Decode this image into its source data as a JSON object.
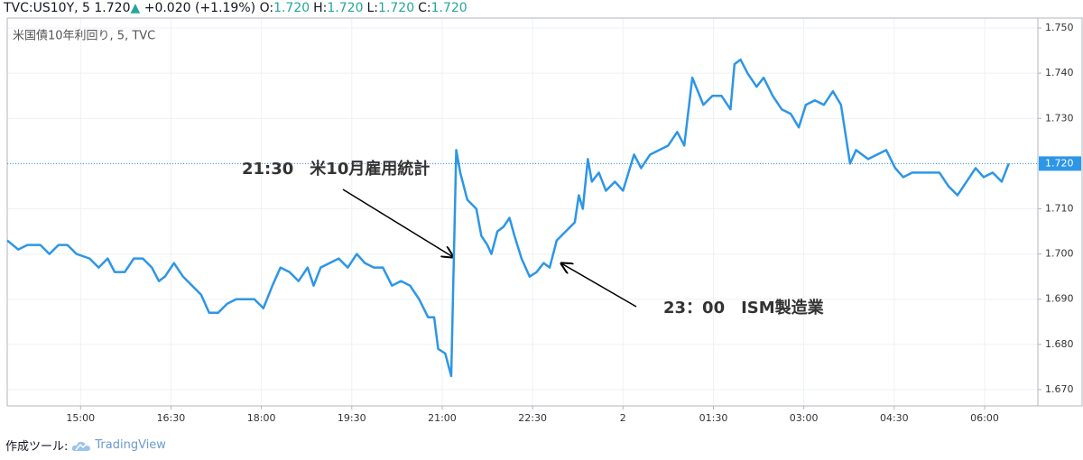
{
  "header": {
    "symbol": "TVC:US10Y, 5",
    "price": "1.720",
    "change_arrow": "▲",
    "change": "+0.020 (+1.19%)",
    "ohlc": [
      {
        "key": "O:",
        "value": "1.720"
      },
      {
        "key": "H:",
        "value": "1.720"
      },
      {
        "key": "L:",
        "value": "1.720"
      },
      {
        "key": "C:",
        "value": "1.720"
      }
    ]
  },
  "chart_data": {
    "type": "line",
    "title": "米国債10年利回り, 5, TVC",
    "x": [
      827,
      838,
      847,
      860,
      869,
      878,
      887,
      896,
      909,
      918,
      927,
      934,
      944,
      953,
      962,
      971,
      978,
      984,
      993,
      1002,
      1011,
      1020,
      1028,
      1037,
      1046,
      1055,
      1064,
      1073,
      1082,
      1091,
      1099,
      1108,
      1117,
      1126,
      1132,
      1139,
      1148,
      1157,
      1166,
      1175,
      1183,
      1192,
      1201,
      1210,
      1219,
      1228,
      1237,
      1246,
      1252,
      1256,
      1263,
      1269,
      1274,
      1278,
      1285,
      1294,
      1299,
      1305,
      1309,
      1315,
      1321,
      1327,
      1332,
      1339,
      1347,
      1354,
      1361,
      1367,
      1374,
      1383,
      1392,
      1396,
      1400,
      1405,
      1409,
      1416,
      1423,
      1432,
      1440,
      1451,
      1458,
      1467,
      1476,
      1485,
      1494,
      1501,
      1509,
      1520,
      1529,
      1538,
      1547,
      1551,
      1557,
      1564,
      1573,
      1580,
      1589,
      1598,
      1607,
      1615,
      1622,
      1631,
      1640,
      1649,
      1657,
      1666,
      1672,
      1684,
      1693,
      1702,
      1711,
      1719,
      1728,
      1737,
      1746,
      1755,
      1764,
      1773,
      1782,
      1791,
      1799,
      1808,
      1817,
      1824
    ],
    "series": [
      {
        "color": "#2d96e6",
        "values": [
          1.703,
          1.701,
          1.702,
          1.702,
          1.7,
          1.702,
          1.702,
          1.7,
          1.699,
          1.697,
          1.699,
          1.696,
          1.696,
          1.699,
          1.699,
          1.697,
          1.694,
          1.695,
          1.698,
          1.695,
          1.693,
          1.691,
          1.687,
          1.687,
          1.689,
          1.69,
          1.69,
          1.69,
          1.688,
          1.693,
          1.697,
          1.696,
          1.694,
          1.697,
          1.693,
          1.697,
          1.698,
          1.699,
          1.697,
          1.7,
          1.698,
          1.697,
          1.697,
          1.693,
          1.694,
          1.693,
          1.69,
          1.686,
          1.686,
          1.679,
          1.678,
          1.673,
          1.723,
          1.718,
          1.712,
          1.71,
          1.704,
          1.702,
          1.7,
          1.705,
          1.706,
          1.708,
          1.704,
          1.699,
          1.695,
          1.696,
          1.698,
          1.697,
          1.703,
          1.705,
          1.707,
          1.713,
          1.71,
          1.721,
          1.716,
          1.718,
          1.714,
          1.716,
          1.714,
          1.722,
          1.719,
          1.722,
          1.723,
          1.724,
          1.727,
          1.724,
          1.739,
          1.733,
          1.735,
          1.735,
          1.732,
          1.742,
          1.743,
          1.74,
          1.737,
          1.739,
          1.735,
          1.732,
          1.731,
          1.728,
          1.733,
          1.734,
          1.733,
          1.736,
          1.733,
          1.72,
          1.723,
          1.721,
          1.722,
          1.723,
          1.719,
          1.717,
          1.718,
          1.718,
          1.718,
          1.718,
          1.715,
          1.713,
          1.716,
          1.719,
          1.717,
          1.718,
          1.716,
          1.72
        ]
      }
    ],
    "last_price": {
      "value": 1.72,
      "label": "1.720"
    },
    "xlim": [
      827,
      1853
    ],
    "xticks": [
      {
        "value": 900,
        "label": "15:00"
      },
      {
        "value": 990,
        "label": "16:30"
      },
      {
        "value": 1080,
        "label": "18:00"
      },
      {
        "value": 1170,
        "label": "19:30"
      },
      {
        "value": 1260,
        "label": "21:00"
      },
      {
        "value": 1350,
        "label": "22:30"
      },
      {
        "value": 1440,
        "label": "2"
      },
      {
        "value": 1530,
        "label": "01:30"
      },
      {
        "value": 1620,
        "label": "03:00"
      },
      {
        "value": 1710,
        "label": "04:30"
      },
      {
        "value": 1800,
        "label": "06:00"
      }
    ],
    "ylim": [
      1.6664,
      1.7522
    ],
    "yticks": [
      {
        "value": 1.67,
        "label": "1.670"
      },
      {
        "value": 1.68,
        "label": "1.680"
      },
      {
        "value": 1.69,
        "label": "1.690"
      },
      {
        "value": 1.7,
        "label": "1.700"
      },
      {
        "value": 1.71,
        "label": "1.710"
      },
      {
        "value": 1.72,
        "label": "1.720"
      },
      {
        "value": 1.73,
        "label": "1.730"
      },
      {
        "value": 1.74,
        "label": "1.740"
      },
      {
        "value": 1.75,
        "label": "1.750"
      }
    ],
    "grid": true,
    "annotations": [
      "21:30　米10月雇用統計",
      "23：00　ISM製造業"
    ]
  },
  "footer": {
    "made_with": "作成ツール:",
    "brand": "TradingView"
  }
}
